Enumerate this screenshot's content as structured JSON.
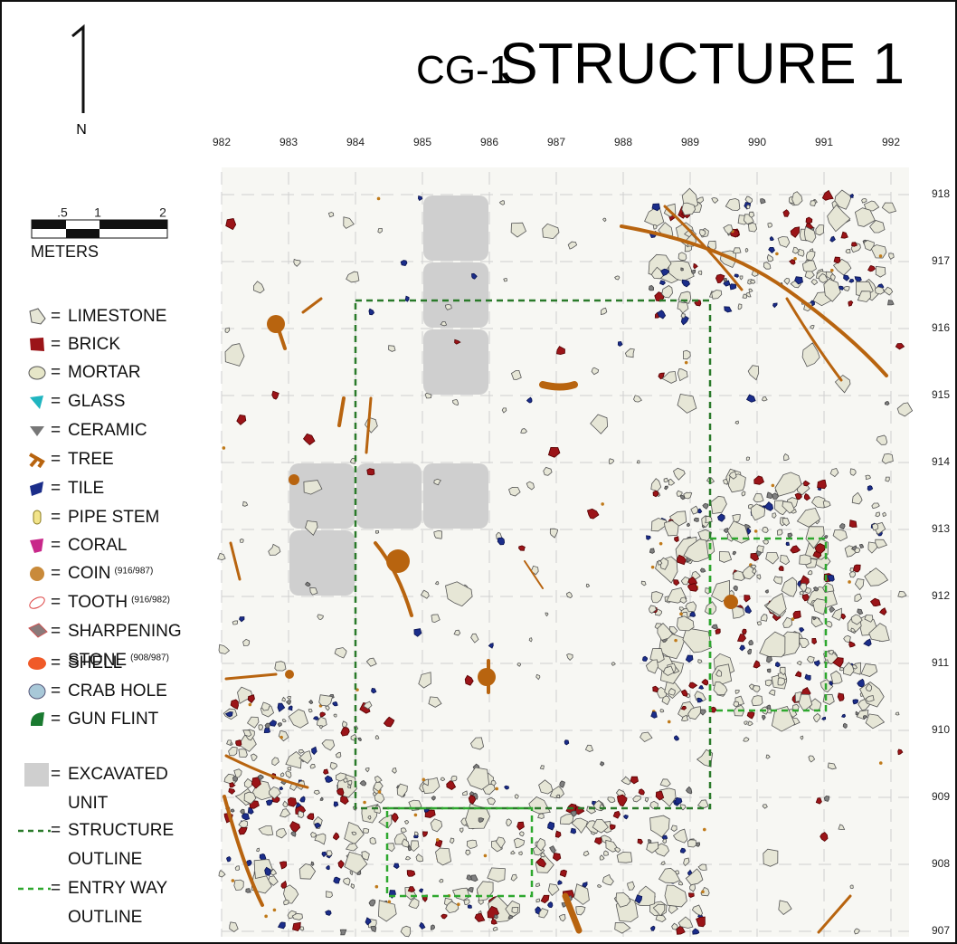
{
  "header": {
    "north": "N",
    "site": "CG-1",
    "title": "STRUCTURE 1"
  },
  "scale": {
    "labels": [
      ".5",
      "1",
      "2"
    ],
    "unit": "METERS"
  },
  "grid": {
    "columns": [
      "982",
      "983",
      "984",
      "985",
      "986",
      "987",
      "988",
      "989",
      "990",
      "991",
      "992"
    ],
    "rows": [
      "918",
      "917",
      "916",
      "915",
      "914",
      "913",
      "912",
      "911",
      "910",
      "909",
      "908",
      "907"
    ]
  },
  "legend": {
    "separator": "=",
    "items": [
      {
        "label": "LIMESTONE"
      },
      {
        "label": "BRICK"
      },
      {
        "label": "MORTAR"
      },
      {
        "label": "GLASS"
      },
      {
        "label": "CERAMIC"
      },
      {
        "label": "TREE"
      },
      {
        "label": "TILE"
      },
      {
        "label": "PIPE STEM"
      },
      {
        "label": "CORAL"
      },
      {
        "label": "COIN",
        "note": "(916/987)"
      },
      {
        "label": "TOOTH",
        "note": "(916/982)"
      },
      {
        "label": "SHARPENING",
        "label2": "STONE",
        "note": "(908/987)"
      },
      {
        "label": "SHELL"
      },
      {
        "label": "CRAB HOLE"
      },
      {
        "label": "GUN FLINT"
      },
      {
        "label": "EXCAVATED",
        "label2": "UNIT"
      },
      {
        "label": "STRUCTURE",
        "label2": "OUTLINE"
      },
      {
        "label": "ENTRY WAY",
        "label2": "OUTLINE"
      }
    ]
  }
}
